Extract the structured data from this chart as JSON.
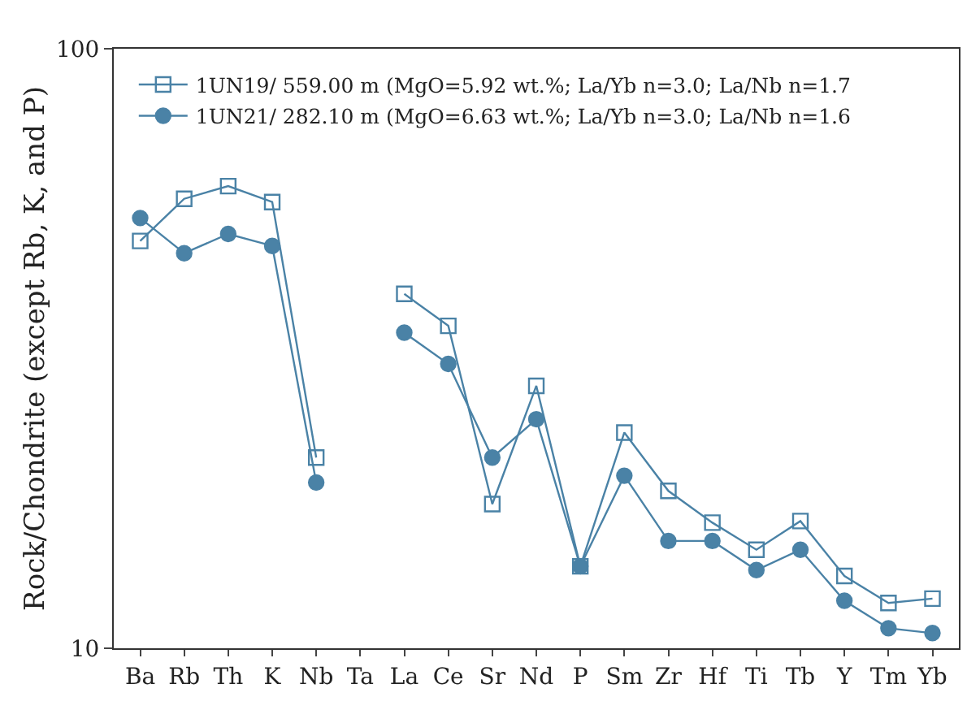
{
  "chart_data": {
    "type": "line",
    "ylabel": "Rock/Chondrite (except Rb, K, and P)",
    "categories": [
      "Ba",
      "Rb",
      "Th",
      "K",
      "Nb",
      "Ta",
      "La",
      "Ce",
      "Sr",
      "Nd",
      "P",
      "Sm",
      "Zr",
      "Hf",
      "Ti",
      "Tb",
      "Y",
      "Tm",
      "Yb"
    ],
    "series": [
      {
        "name": "1UN19/ 559.00 m (MgO=5.92 wt.%; La/Yb n=3.0; La/Nb n=1.7",
        "color": "#4a82a6",
        "marker": "square",
        "values": [
          47.8,
          56.2,
          59,
          55.5,
          20.8,
          null,
          39,
          34.5,
          17.4,
          27.4,
          13.7,
          22.9,
          18.3,
          16.2,
          14.6,
          16.3,
          13.2,
          11.9,
          12.1
        ]
      },
      {
        "name": "1UN21/ 282.10 m (MgO=6.63 wt.%; La/Yb n=3.0; La/Nb n=1.6",
        "color": "#4a82a6",
        "marker": "circle",
        "values": [
          52.2,
          45.6,
          49.1,
          46.9,
          18.9,
          null,
          33.6,
          29.8,
          20.8,
          24.1,
          13.7,
          19.4,
          15.1,
          15.1,
          13.5,
          14.6,
          12.0,
          10.8,
          10.6
        ]
      }
    ],
    "log": "y",
    "ylim": [
      10,
      100
    ],
    "yticks": [
      10,
      100
    ],
    "legend": "top left",
    "line_style": "solid"
  }
}
